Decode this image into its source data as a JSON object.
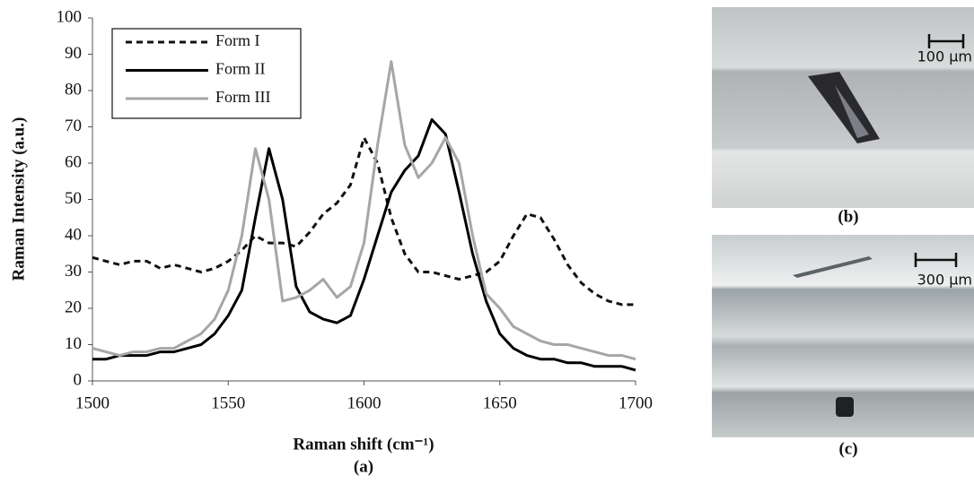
{
  "chart_data": {
    "type": "line",
    "x_label": "Raman shift (cm⁻¹)",
    "y_label": "Raman Intensity (a.u.)",
    "caption": "(a)",
    "x": [
      1500,
      1505,
      1510,
      1515,
      1520,
      1525,
      1530,
      1535,
      1540,
      1545,
      1550,
      1555,
      1560,
      1565,
      1570,
      1575,
      1580,
      1585,
      1590,
      1595,
      1600,
      1605,
      1610,
      1615,
      1620,
      1625,
      1630,
      1635,
      1640,
      1645,
      1650,
      1655,
      1660,
      1665,
      1670,
      1675,
      1680,
      1685,
      1690,
      1695,
      1700
    ],
    "series": [
      {
        "name": "Form I",
        "color": "#111111",
        "line_style": "dashed",
        "values": [
          34,
          33,
          32,
          33,
          33,
          31,
          32,
          31,
          30,
          31,
          33,
          36,
          40,
          38,
          38,
          37,
          41,
          46,
          49,
          54,
          67,
          60,
          45,
          35,
          30,
          30,
          29,
          28,
          29,
          30,
          33,
          40,
          46,
          45,
          39,
          32,
          27,
          24,
          22,
          21,
          21
        ]
      },
      {
        "name": "Form II",
        "color": "#000000",
        "line_style": "solid",
        "values": [
          6,
          6,
          7,
          7,
          7,
          8,
          8,
          9,
          10,
          13,
          18,
          25,
          45,
          64,
          50,
          26,
          19,
          17,
          16,
          18,
          28,
          40,
          52,
          58,
          62,
          72,
          68,
          52,
          35,
          22,
          13,
          9,
          7,
          6,
          6,
          5,
          5,
          4,
          4,
          4,
          3
        ]
      },
      {
        "name": "Form III",
        "color": "#a6a6a6",
        "line_style": "solid",
        "values": [
          9,
          8,
          7,
          8,
          8,
          9,
          9,
          11,
          13,
          17,
          25,
          40,
          64,
          50,
          22,
          23,
          25,
          28,
          23,
          26,
          38,
          65,
          88,
          65,
          56,
          60,
          67,
          60,
          40,
          24,
          20,
          15,
          13,
          11,
          10,
          10,
          9,
          8,
          7,
          7,
          6
        ]
      }
    ],
    "xlim": [
      1500,
      1700
    ],
    "xticks": [
      1500,
      1550,
      1600,
      1650,
      1700
    ],
    "ylim": [
      0,
      100
    ],
    "yticks": [
      0,
      10,
      20,
      30,
      40,
      50,
      60,
      70,
      80,
      90,
      100
    ],
    "grid": false,
    "legend": "top-left"
  },
  "images": [
    {
      "scale_label": "100 µm",
      "caption": "(b)"
    },
    {
      "scale_label": "300 µm",
      "caption": "(c)"
    }
  ]
}
